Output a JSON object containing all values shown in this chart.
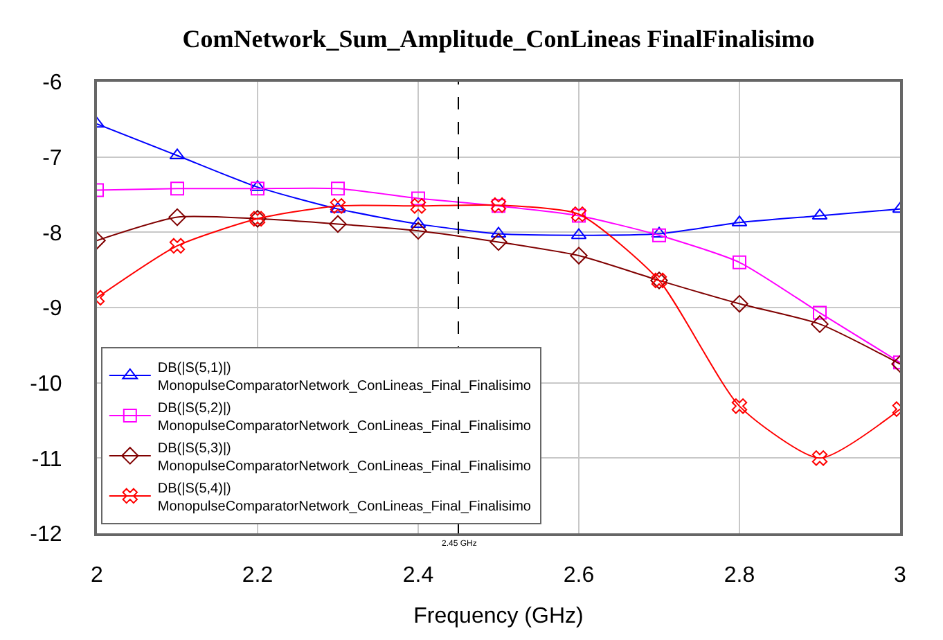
{
  "chart_data": {
    "type": "line",
    "title": "ComNetwork_Sum_Amplitude_ConLineas FinalFinalisimo",
    "xlabel": "Frequency (GHz)",
    "x": [
      2.0,
      2.1,
      2.2,
      2.3,
      2.4,
      2.5,
      2.6,
      2.7,
      2.8,
      2.9,
      3.0
    ],
    "series": [
      {
        "name": "DB(|S(5,1)|)\nMonopulseComparatorNetwork_ConLineas_Final_Finalisimo",
        "color": "#0000ff",
        "marker": "triangle",
        "values": [
          -6.56,
          -6.98,
          -7.4,
          -7.69,
          -7.89,
          -8.02,
          -8.04,
          -8.02,
          -7.87,
          -7.78,
          -7.69
        ]
      },
      {
        "name": "DB(|S(5,2)|)\nMonopulseComparatorNetwork_ConLineas_Final_Finalisimo",
        "color": "#ff00ff",
        "marker": "square",
        "values": [
          -7.44,
          -7.42,
          -7.42,
          -7.42,
          -7.55,
          -7.65,
          -7.78,
          -8.04,
          -8.4,
          -9.07,
          -9.73
        ]
      },
      {
        "name": "DB(|S(5,3)|)\nMonopulseComparatorNetwork_ConLineas_Final_Finalisimo",
        "color": "#800000",
        "marker": "diamond",
        "values": [
          -8.11,
          -7.8,
          -7.82,
          -7.89,
          -7.98,
          -8.13,
          -8.31,
          -8.64,
          -8.95,
          -9.22,
          -9.75
        ]
      },
      {
        "name": "DB(|S(5,4)|)\nMonopulseComparatorNetwork_ConLineas_Final_Finalisimo",
        "color": "#ff0000",
        "marker": "cross",
        "values": [
          -8.87,
          -8.18,
          -7.82,
          -7.65,
          -7.65,
          -7.64,
          -7.76,
          -8.64,
          -10.31,
          -11.0,
          -10.35
        ]
      }
    ],
    "xlim": [
      2,
      3
    ],
    "xticks": [
      2,
      2.2,
      2.4,
      2.6,
      2.8,
      3
    ],
    "ylim": [
      -12,
      -6
    ],
    "yticks": [
      -12,
      -11,
      -10,
      -9,
      -8,
      -7,
      -6
    ],
    "ref_lines": [
      {
        "axis": "x",
        "value": 2.45,
        "label": "2.45 GHz",
        "color": "#000000",
        "line_style": "dashed"
      }
    ],
    "grid": true,
    "legend": "bottom left"
  }
}
